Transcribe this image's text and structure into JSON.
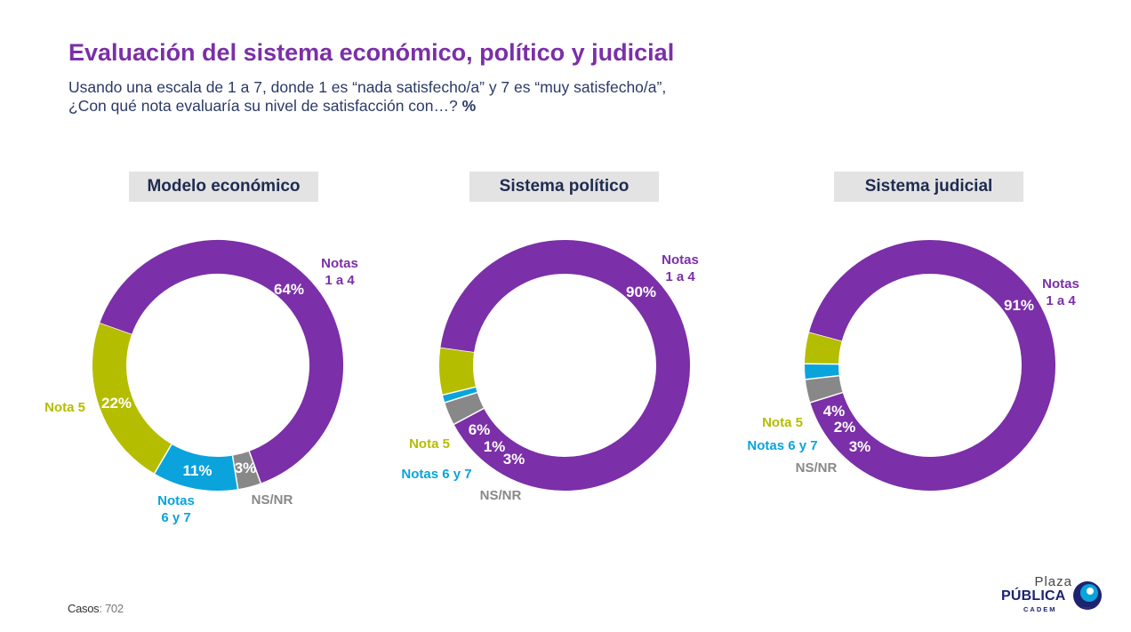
{
  "header": {
    "title": "Evaluación del sistema económico, político y judicial",
    "subtitle_line1": "Usando una escala de 1 a 7, donde 1 es “nada satisfecho/a” y 7 es “muy satisfecho/a”,",
    "subtitle_line2": "¿Con qué nota evaluaría su nivel de satisfacción con…?",
    "subtitle_unit": "%"
  },
  "colors": {
    "notas_1_4": "#7b2fa8",
    "nota_5": "#b5bd00",
    "notas_6_7": "#0aa3dc",
    "ns_nr": "#888888"
  },
  "chart_data": [
    {
      "type": "pie",
      "title": "Modelo económico",
      "segments": [
        {
          "name": "Notas 1 a 4",
          "value": 64,
          "label": "64%"
        },
        {
          "name": "NS/NR",
          "value": 3,
          "label": "3%"
        },
        {
          "name": "Notas 6 y 7",
          "value": 11,
          "label": "11%"
        },
        {
          "name": "Nota 5",
          "value": 22,
          "label": "22%"
        }
      ]
    },
    {
      "type": "pie",
      "title": "Sistema político",
      "segments": [
        {
          "name": "Notas 1 a 4",
          "value": 90,
          "label": "90%"
        },
        {
          "name": "NS/NR",
          "value": 3,
          "label": "3%"
        },
        {
          "name": "Notas 6 y 7",
          "value": 1,
          "label": "1%"
        },
        {
          "name": "Nota 5",
          "value": 6,
          "label": "6%"
        }
      ]
    },
    {
      "type": "pie",
      "title": "Sistema judicial",
      "segments": [
        {
          "name": "Notas 1 a 4",
          "value": 91,
          "label": "91%"
        },
        {
          "name": "NS/NR",
          "value": 3,
          "label": "3%"
        },
        {
          "name": "Notas 6 y 7",
          "value": 2,
          "label": "2%"
        },
        {
          "name": "Nota 5",
          "value": 4,
          "label": "4%"
        }
      ]
    }
  ],
  "footer": {
    "casos_label": "Casos",
    "casos_value": ": 702"
  },
  "logo": {
    "line1": "Plaza",
    "line2": "PÚBLICA",
    "line3": "CADEM"
  }
}
